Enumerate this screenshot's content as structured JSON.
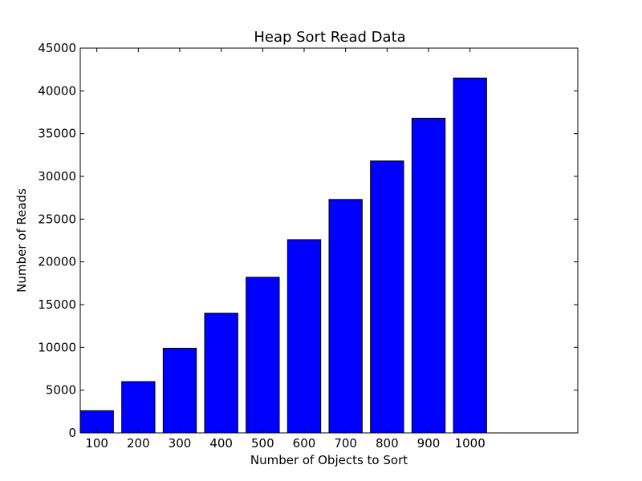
{
  "chart_data": {
    "type": "bar",
    "title": "Heap Sort Read Data",
    "xlabel": "Number of Objects to Sort",
    "ylabel": "Number of Reads",
    "categories": [
      "100",
      "200",
      "300",
      "400",
      "500",
      "600",
      "700",
      "800",
      "900",
      "1000"
    ],
    "values": [
      2600,
      6000,
      9900,
      14000,
      18200,
      22600,
      27300,
      31800,
      36800,
      41500
    ],
    "ylim": [
      0,
      45000
    ],
    "yticks": [
      0,
      5000,
      10000,
      15000,
      20000,
      25000,
      30000,
      35000,
      40000,
      45000
    ],
    "grid": false,
    "bar_color": "#0000ff",
    "edge_color": "#000000"
  }
}
